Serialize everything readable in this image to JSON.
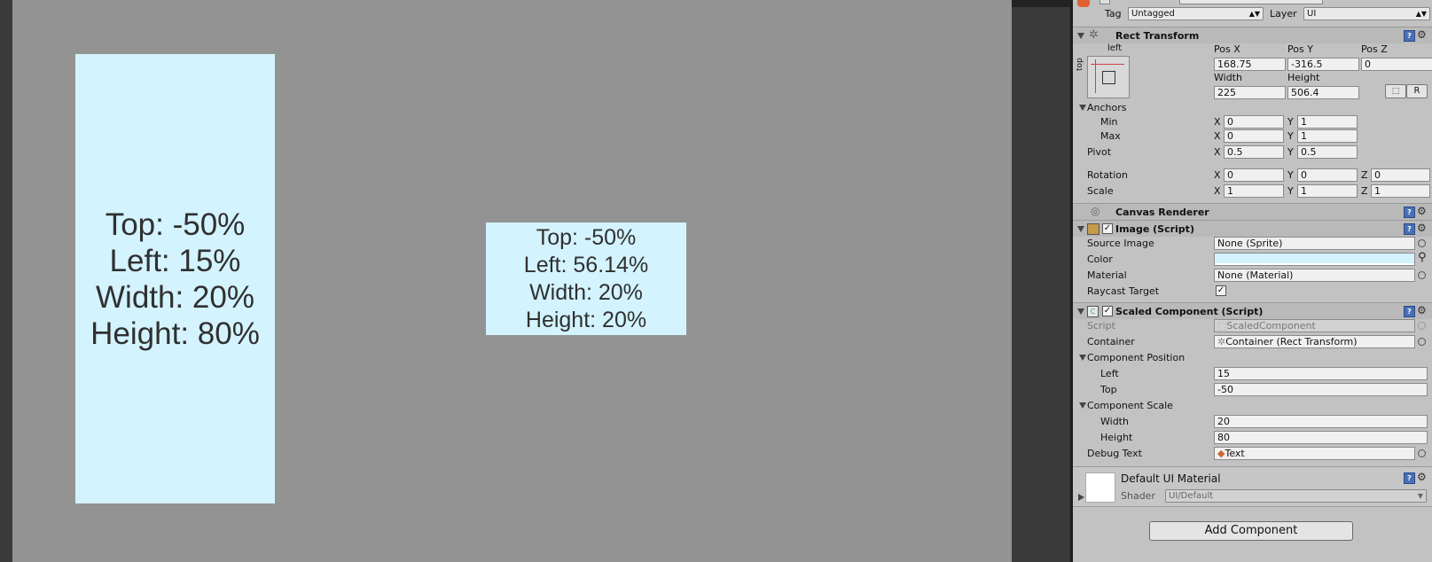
{
  "scene": {
    "box1": {
      "lines": [
        "Top: -50%",
        "Left: 15%",
        "Width: 20%",
        "Height: 80%"
      ]
    },
    "box2": {
      "lines": [
        "Top: -50%",
        "Left: 56.14%",
        "Width: 20%",
        "Height: 20%"
      ]
    }
  },
  "inspector": {
    "tag_label": "Tag",
    "tag_value": "Untagged",
    "layer_label": "Layer",
    "layer_value": "UI",
    "rect_transform": {
      "title": "Rect Transform",
      "anchor_left": "left",
      "anchor_top": "top",
      "pos_x_label": "Pos X",
      "pos_y_label": "Pos Y",
      "pos_z_label": "Pos Z",
      "pos_x": "168.75",
      "pos_y": "-316.5",
      "pos_z": "0",
      "width_label": "Width",
      "height_label": "Height",
      "width": "225",
      "height": "506.4",
      "r_button": "R",
      "anchors_label": "Anchors",
      "min_label": "Min",
      "max_label": "Max",
      "min_x": "0",
      "min_y": "1",
      "max_x": "0",
      "max_y": "1",
      "pivot_label": "Pivot",
      "pivot_x": "0.5",
      "pivot_y": "0.5",
      "rotation_label": "Rotation",
      "rot_x": "0",
      "rot_y": "0",
      "rot_z": "0",
      "scale_label": "Scale",
      "scale_x": "1",
      "scale_y": "1",
      "scale_z": "1",
      "x": "X",
      "y": "Y",
      "z": "Z"
    },
    "canvas_renderer": {
      "title": "Canvas Renderer"
    },
    "image": {
      "title": "Image (Script)",
      "source_image_label": "Source Image",
      "source_image": "None (Sprite)",
      "color_label": "Color",
      "material_label": "Material",
      "material": "None (Material)",
      "raycast_label": "Raycast Target",
      "color_hex": "#d3f3ff"
    },
    "scaled": {
      "title": "Scaled Component (Script)",
      "script_label": "Script",
      "script": "ScaledComponent",
      "container_label": "Container",
      "container": "Container (Rect Transform)",
      "pos_label": "Component Position",
      "left_label": "Left",
      "left": "15",
      "top_label": "Top",
      "top": "-50",
      "scale_label": "Component Scale",
      "width_label": "Width",
      "width": "20",
      "height_label": "Height",
      "height": "80",
      "debug_label": "Debug Text",
      "debug": "Text"
    },
    "material": {
      "title": "Default UI Material",
      "shader_label": "Shader",
      "shader": "UI/Default"
    },
    "add_component": "Add Component"
  }
}
